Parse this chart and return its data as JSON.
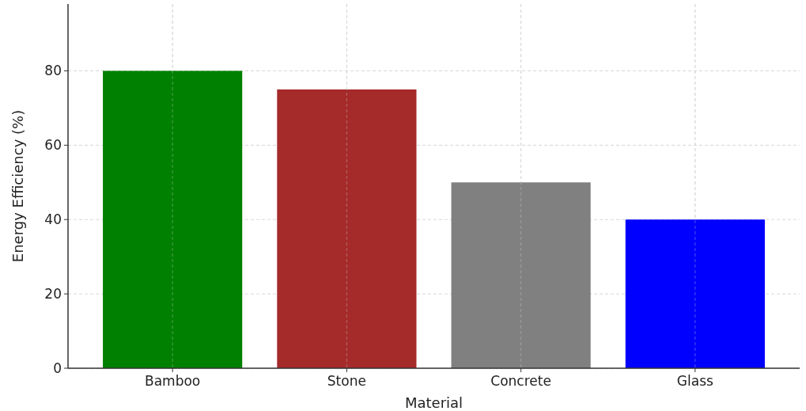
{
  "chart_data": {
    "type": "bar",
    "xlabel": "Material",
    "ylabel": "Energy Efficiency (%)",
    "categories": [
      "Bamboo",
      "Stone",
      "Concrete",
      "Glass"
    ],
    "values": [
      80,
      75,
      50,
      40
    ],
    "colors": [
      "#008000",
      "#a52a2a",
      "#808080",
      "#0000ff"
    ],
    "ylim": [
      0,
      98
    ],
    "yticks": [
      0,
      20,
      40,
      60,
      80
    ],
    "grid": true
  }
}
